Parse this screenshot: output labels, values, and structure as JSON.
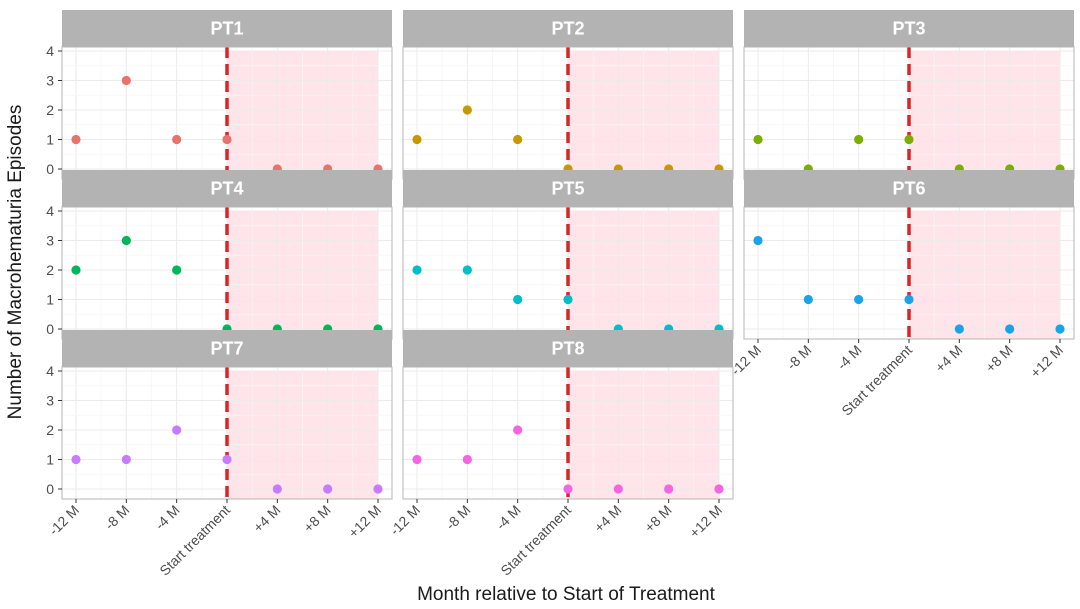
{
  "chart_data": {
    "type": "scatter",
    "facet": "small-multiples",
    "xlabel": "Month relative to Start of Treatment",
    "ylabel": "Number of Macrohematuria Episodes",
    "categories": [
      "-12 M",
      "-8 M",
      "-4 M",
      "Start treatment",
      "+4 M",
      "+8 M",
      "+12 M"
    ],
    "yticks": [
      "0",
      "1",
      "2",
      "3",
      "4"
    ],
    "ylim": [
      0,
      4
    ],
    "treatment_start_category": "Start treatment",
    "treatment_period_shading": "from Start treatment to +12 M",
    "colors": {
      "reference_line": "#d62728",
      "treatment_shading": "#ffe4ea",
      "strip_background": "#b3b3b3",
      "grid": "#ebebeb"
    },
    "panels": [
      {
        "name": "PT1",
        "color": "#e8736c",
        "values": [
          1,
          3,
          1,
          1,
          0,
          0,
          0
        ]
      },
      {
        "name": "PT2",
        "color": "#c49a00",
        "values": [
          1,
          2,
          1,
          0,
          0,
          0,
          0
        ]
      },
      {
        "name": "PT3",
        "color": "#7cae00",
        "values": [
          1,
          0,
          1,
          1,
          0,
          0,
          0
        ]
      },
      {
        "name": "PT4",
        "color": "#00b65a",
        "values": [
          2,
          3,
          2,
          0,
          0,
          0,
          0
        ]
      },
      {
        "name": "PT5",
        "color": "#00bfc4",
        "values": [
          2,
          2,
          1,
          1,
          0,
          0,
          0
        ]
      },
      {
        "name": "PT6",
        "color": "#1aa3e8",
        "values": [
          3,
          1,
          1,
          1,
          0,
          0,
          0
        ]
      },
      {
        "name": "PT7",
        "color": "#c77cff",
        "values": [
          1,
          1,
          2,
          1,
          0,
          0,
          0
        ]
      },
      {
        "name": "PT8",
        "color": "#f564e3",
        "values": [
          1,
          1,
          2,
          0,
          0,
          0,
          0
        ]
      }
    ]
  }
}
